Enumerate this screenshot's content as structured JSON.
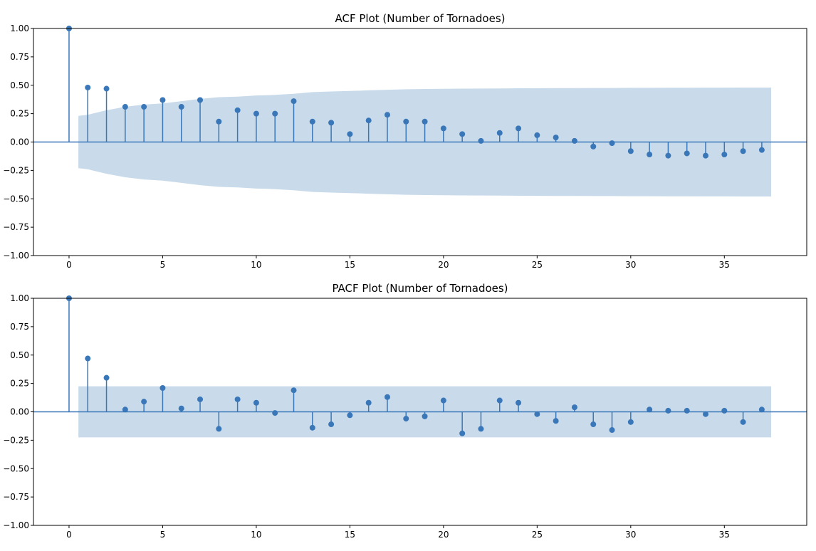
{
  "chart_data": [
    {
      "type": "stem",
      "title": "ACF Plot (Number of Tornadoes)",
      "xlabel": "",
      "ylabel": "",
      "xlim": [
        -1.9,
        39.4
      ],
      "ylim": [
        -1.0,
        1.0
      ],
      "x_ticks": [
        "0",
        "5",
        "10",
        "15",
        "20",
        "25",
        "30",
        "35"
      ],
      "y_ticks": [
        "1.00",
        "0.75",
        "0.50",
        "0.25",
        "0.00",
        "−0.25",
        "−0.50",
        "−0.75",
        "−1.00"
      ],
      "grid": false,
      "lags": [
        0,
        1,
        2,
        3,
        4,
        5,
        6,
        7,
        8,
        9,
        10,
        11,
        12,
        13,
        14,
        15,
        16,
        17,
        18,
        19,
        20,
        21,
        22,
        23,
        24,
        25,
        26,
        27,
        28,
        29,
        30,
        31,
        32,
        33,
        34,
        35,
        36,
        37
      ],
      "values": [
        1.0,
        0.48,
        0.47,
        0.31,
        0.31,
        0.37,
        0.31,
        0.37,
        0.18,
        0.28,
        0.25,
        0.25,
        0.36,
        0.18,
        0.17,
        0.07,
        0.19,
        0.24,
        0.18,
        0.18,
        0.12,
        0.07,
        0.01,
        0.08,
        0.12,
        0.06,
        0.04,
        0.01,
        -0.04,
        -0.01,
        -0.08,
        -0.11,
        -0.12,
        -0.1,
        -0.12,
        -0.11,
        -0.08,
        -0.07
      ],
      "confidence_band": {
        "x": [
          0.5,
          1,
          2,
          3,
          4,
          5,
          6,
          7,
          8,
          9,
          10,
          11,
          12,
          13,
          14,
          15,
          16,
          17,
          18,
          19,
          20,
          21,
          22,
          23,
          24,
          25,
          26,
          27,
          28,
          29,
          30,
          31,
          32,
          33,
          34,
          35,
          36,
          37,
          37.5
        ],
        "upper": [
          0.23,
          0.24,
          0.28,
          0.31,
          0.33,
          0.34,
          0.36,
          0.38,
          0.395,
          0.4,
          0.41,
          0.415,
          0.425,
          0.44,
          0.445,
          0.45,
          0.455,
          0.46,
          0.465,
          0.467,
          0.469,
          0.47,
          0.471,
          0.472,
          0.473,
          0.474,
          0.475,
          0.475,
          0.476,
          0.476,
          0.477,
          0.477,
          0.478,
          0.478,
          0.479,
          0.479,
          0.48,
          0.48,
          0.48
        ]
      },
      "colors": {
        "stem": "#3a77b8",
        "marker": "#3a77b8",
        "band": "#c9dbea",
        "zero_line": "#3a77b8"
      }
    },
    {
      "type": "stem",
      "title": "PACF Plot (Number of Tornadoes)",
      "xlabel": "",
      "ylabel": "",
      "xlim": [
        -1.9,
        39.4
      ],
      "ylim": [
        -1.0,
        1.0
      ],
      "x_ticks": [
        "0",
        "5",
        "10",
        "15",
        "20",
        "25",
        "30",
        "35"
      ],
      "y_ticks": [
        "1.00",
        "0.75",
        "0.50",
        "0.25",
        "0.00",
        "−0.25",
        "−0.50",
        "−0.75",
        "−1.00"
      ],
      "grid": false,
      "lags": [
        0,
        1,
        2,
        3,
        4,
        5,
        6,
        7,
        8,
        9,
        10,
        11,
        12,
        13,
        14,
        15,
        16,
        17,
        18,
        19,
        20,
        21,
        22,
        23,
        24,
        25,
        26,
        27,
        28,
        29,
        30,
        31,
        32,
        33,
        34,
        35,
        36,
        37
      ],
      "values": [
        1.0,
        0.47,
        0.3,
        0.02,
        0.09,
        0.21,
        0.03,
        0.11,
        -0.15,
        0.11,
        0.08,
        -0.01,
        0.19,
        -0.14,
        -0.11,
        -0.03,
        0.08,
        0.13,
        -0.06,
        -0.04,
        0.1,
        -0.19,
        -0.15,
        0.1,
        0.08,
        -0.02,
        -0.08,
        0.04,
        -0.11,
        -0.16,
        -0.09,
        0.02,
        0.01,
        0.01,
        -0.02,
        0.01,
        -0.09,
        0.02
      ],
      "confidence_band": {
        "x": [
          0.5,
          37.5
        ],
        "upper": [
          0.225,
          0.225
        ]
      },
      "colors": {
        "stem": "#3a77b8",
        "marker": "#3a77b8",
        "band": "#c9dbea",
        "zero_line": "#3a77b8"
      }
    }
  ]
}
